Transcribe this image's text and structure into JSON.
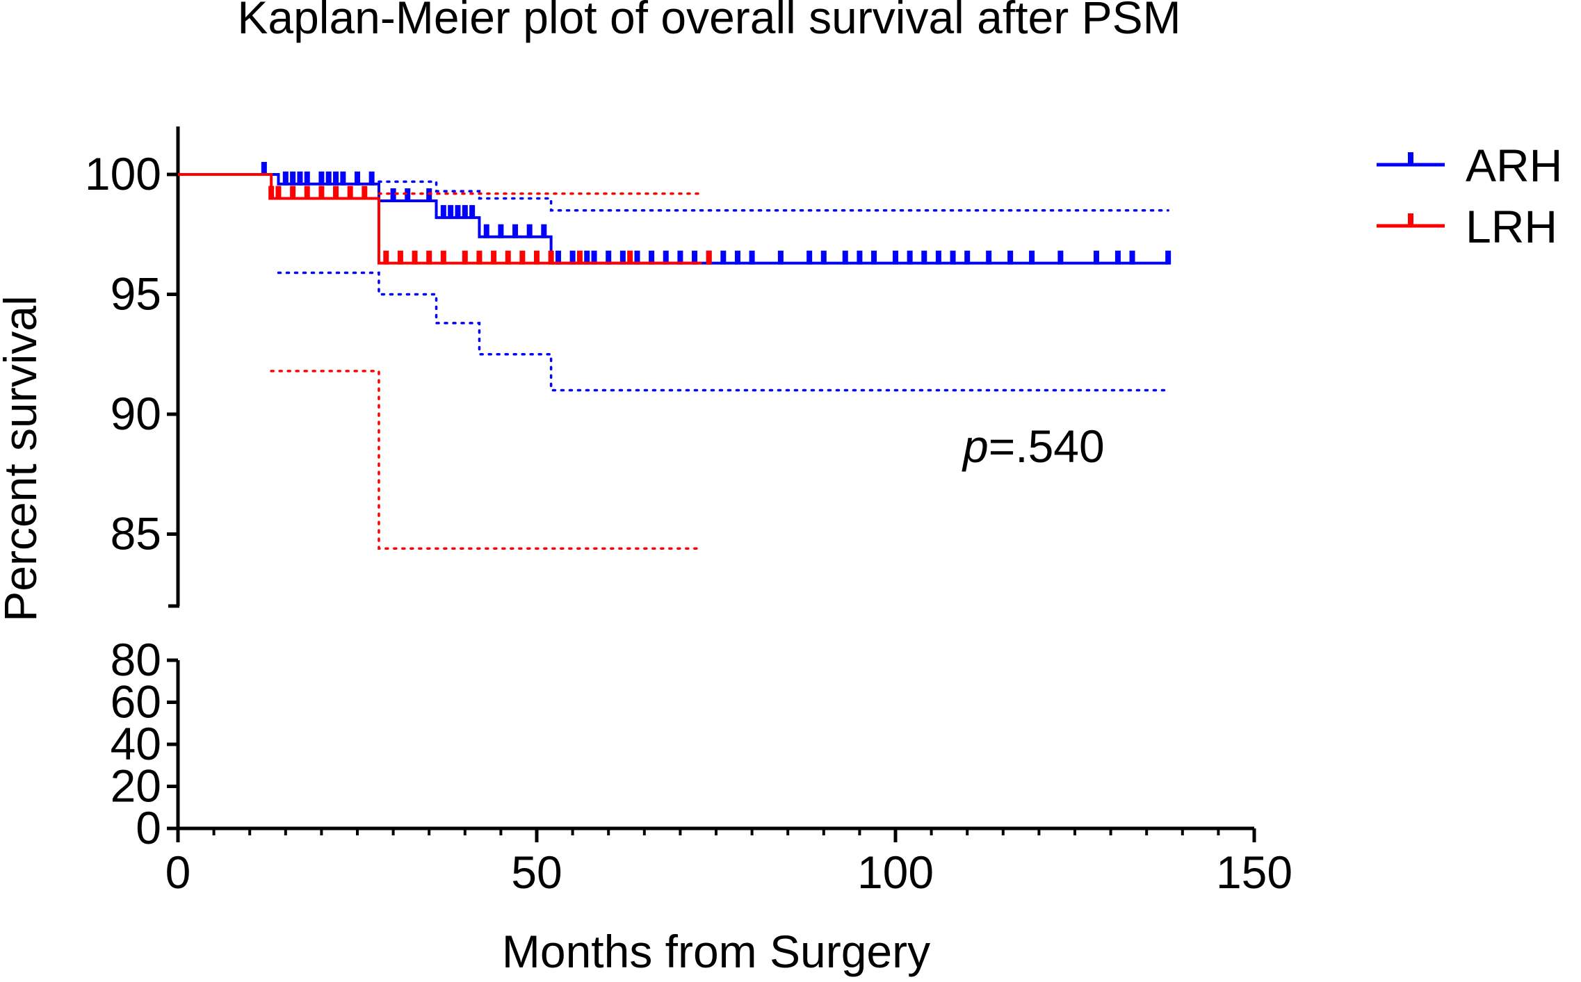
{
  "chart_data": {
    "type": "line",
    "title": "Kaplan-Meier plot of overall survival  after PSM",
    "xlabel": "Months from Surgery",
    "ylabel": "Percent survival",
    "annotation": {
      "italic": "p",
      "rest": "=.540"
    },
    "xlim": [
      0,
      150
    ],
    "x_ticks": [
      0,
      50,
      100,
      150
    ],
    "x_tick_labels": [
      "0",
      "50",
      "100",
      "150"
    ],
    "upper_ylim": [
      82,
      102
    ],
    "upper_y_ticks": [
      85,
      90,
      95,
      100
    ],
    "upper_y_tick_labels": [
      "85",
      "90",
      "95",
      "100"
    ],
    "lower_ylim": [
      0,
      80
    ],
    "lower_y_ticks": [
      0,
      20,
      40,
      60,
      80
    ],
    "lower_y_tick_labels": [
      "0",
      "20",
      "40",
      "60",
      "80"
    ],
    "legend": {
      "position": "top-right",
      "entries": [
        "ARH",
        "LRH"
      ]
    },
    "series": [
      {
        "name": "ARH",
        "color": "#0000ff",
        "steps": [
          [
            0,
            100
          ],
          [
            14,
            99.6
          ],
          [
            28,
            98.9
          ],
          [
            36,
            98.2
          ],
          [
            42,
            97.4
          ],
          [
            52,
            96.3
          ],
          [
            138,
            96.3
          ]
        ],
        "censor_times": [
          12,
          15,
          16,
          17,
          18,
          20,
          21,
          22,
          23,
          25,
          27,
          30,
          32,
          35,
          37,
          38,
          39,
          40,
          41,
          43,
          45,
          47,
          49,
          51,
          53,
          55,
          57,
          58,
          60,
          62,
          64,
          66,
          68,
          70,
          72,
          74,
          76,
          78,
          80,
          84,
          88,
          90,
          93,
          95,
          97,
          100,
          102,
          104,
          106,
          108,
          110,
          113,
          116,
          119,
          123,
          128,
          131,
          133,
          138
        ],
        "ci_upper": [
          [
            28,
            99.7
          ],
          [
            36,
            99.3
          ],
          [
            42,
            99.0
          ],
          [
            52,
            98.5
          ],
          [
            138,
            98.5
          ]
        ],
        "ci_lower": [
          [
            14,
            95.9
          ],
          [
            28,
            95.0
          ],
          [
            36,
            93.8
          ],
          [
            42,
            92.5
          ],
          [
            52,
            91.0
          ],
          [
            138,
            91.0
          ]
        ]
      },
      {
        "name": "LRH",
        "color": "#ff0000",
        "steps": [
          [
            0,
            100
          ],
          [
            13,
            99.0
          ],
          [
            28,
            96.3
          ],
          [
            73,
            96.3
          ]
        ],
        "censor_times": [
          13,
          14,
          16,
          18,
          20,
          22,
          24,
          26,
          29,
          31,
          33,
          35,
          37,
          40,
          42,
          44,
          46,
          48,
          50,
          52,
          56,
          63,
          74
        ],
        "ci_upper": [
          [
            28,
            99.2
          ],
          [
            73,
            99.2
          ]
        ],
        "ci_lower": [
          [
            13,
            91.8
          ],
          [
            28,
            91.8
          ],
          [
            28,
            84.4
          ],
          [
            73,
            84.4
          ]
        ]
      }
    ]
  }
}
